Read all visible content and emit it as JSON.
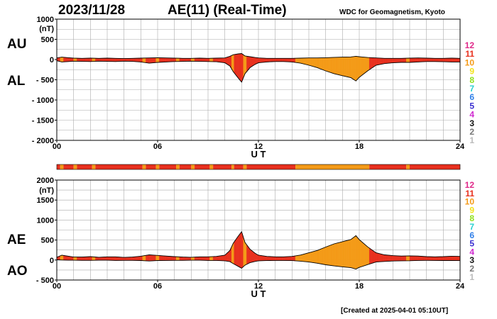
{
  "header": {
    "date": "2023/11/28",
    "title": "AE(11) (Real-Time)",
    "credit": "WDC for Geomagnetism, Kyoto"
  },
  "footer": {
    "created": "[Created at 2025-04-01 05:10UT]"
  },
  "colors": {
    "quiet": "#e8301e",
    "active": "#f49a17",
    "line": "#000000",
    "grid": "#aaaaaa"
  },
  "level_scale": [
    {
      "label": "12",
      "color": "#e02a8a"
    },
    {
      "label": "11",
      "color": "#e8301e"
    },
    {
      "label": "10",
      "color": "#f49a17"
    },
    {
      "label": "9",
      "color": "#f2e21b"
    },
    {
      "label": "8",
      "color": "#8fe01c"
    },
    {
      "label": "7",
      "color": "#2ad0d0"
    },
    {
      "label": "6",
      "color": "#2f7fe8"
    },
    {
      "label": "5",
      "color": "#3a2fd0"
    },
    {
      "label": "4",
      "color": "#d02ad0"
    },
    {
      "label": "3",
      "color": "#111111"
    },
    {
      "label": "2",
      "color": "#777777"
    },
    {
      "label": "1",
      "color": "#bbbbbb"
    }
  ],
  "chart_data": [
    {
      "type": "area",
      "name": "AU/AL",
      "upper_label": "AU",
      "lower_label": "AL",
      "unit": "(nT)",
      "xlabel": "U T",
      "xlim": [
        0,
        24
      ],
      "x_ticks": [
        "00",
        "06",
        "12",
        "18",
        "24"
      ],
      "ylim": [
        -2000,
        1000
      ],
      "y_ticks": [
        "1000",
        "500",
        "0",
        "- 500",
        "- 1000",
        "- 1500",
        "- 2000"
      ],
      "grid": true,
      "x": [
        0,
        0.3,
        0.7,
        1,
        1.5,
        2,
        2.5,
        3,
        3.5,
        4,
        4.5,
        5,
        5.5,
        6,
        6.5,
        7,
        7.5,
        8,
        8.5,
        9,
        9.5,
        10,
        10.3,
        10.5,
        10.8,
        11,
        11.2,
        11.5,
        11.8,
        12,
        12.5,
        13,
        13.5,
        14,
        14.5,
        15,
        15.5,
        16,
        16.5,
        17,
        17.5,
        17.8,
        18,
        18.5,
        19,
        19.5,
        20,
        20.5,
        21,
        21.5,
        22,
        22.5,
        23,
        23.5,
        24
      ],
      "AU": [
        40,
        60,
        45,
        35,
        30,
        35,
        30,
        35,
        30,
        25,
        30,
        35,
        40,
        45,
        40,
        35,
        30,
        30,
        35,
        30,
        35,
        40,
        80,
        120,
        140,
        150,
        90,
        70,
        50,
        40,
        30,
        30,
        30,
        30,
        35,
        40,
        40,
        45,
        55,
        60,
        65,
        80,
        70,
        50,
        40,
        30,
        30,
        30,
        35,
        40,
        35,
        30,
        30,
        35,
        30
      ],
      "AL": [
        -30,
        -60,
        -50,
        -40,
        -45,
        -50,
        -40,
        -45,
        -50,
        -40,
        -45,
        -60,
        -90,
        -70,
        -60,
        -50,
        -45,
        -40,
        -45,
        -50,
        -55,
        -80,
        -160,
        -300,
        -460,
        -560,
        -350,
        -200,
        -120,
        -80,
        -60,
        -50,
        -50,
        -60,
        -90,
        -140,
        -200,
        -280,
        -350,
        -400,
        -450,
        -530,
        -440,
        -280,
        -140,
        -100,
        -80,
        -70,
        -70,
        -60,
        -50,
        -50,
        -55,
        -60,
        -60
      ]
    },
    {
      "type": "area",
      "name": "AE/AO",
      "upper_label": "AE",
      "lower_label": "AO",
      "unit": "(nT)",
      "xlabel": "U T",
      "xlim": [
        0,
        24
      ],
      "x_ticks": [
        "00",
        "06",
        "12",
        "18",
        "24"
      ],
      "ylim": [
        -500,
        2000
      ],
      "y_ticks": [
        "2000",
        "1500",
        "1000",
        "500",
        "0",
        "- 500"
      ],
      "grid": true,
      "x": [
        0,
        0.3,
        0.7,
        1,
        1.5,
        2,
        2.5,
        3,
        3.5,
        4,
        4.5,
        5,
        5.5,
        6,
        6.5,
        7,
        7.5,
        8,
        8.5,
        9,
        9.5,
        10,
        10.3,
        10.5,
        10.8,
        11,
        11.2,
        11.5,
        11.8,
        12,
        12.5,
        13,
        13.5,
        14,
        14.5,
        15,
        15.5,
        16,
        16.5,
        17,
        17.5,
        17.8,
        18,
        18.5,
        19,
        19.5,
        20,
        20.5,
        21,
        21.5,
        22,
        22.5,
        23,
        23.5,
        24
      ],
      "AE": [
        70,
        120,
        95,
        75,
        75,
        85,
        70,
        80,
        80,
        65,
        75,
        95,
        130,
        115,
        100,
        85,
        75,
        70,
        80,
        80,
        90,
        120,
        240,
        420,
        600,
        710,
        440,
        270,
        170,
        120,
        90,
        80,
        80,
        90,
        125,
        180,
        240,
        325,
        405,
        460,
        515,
        610,
        510,
        330,
        180,
        130,
        110,
        100,
        105,
        100,
        85,
        80,
        85,
        95,
        90
      ],
      "AO": [
        5,
        0,
        -5,
        -5,
        -8,
        -8,
        -5,
        -5,
        -10,
        -8,
        -8,
        -12,
        -25,
        -12,
        -10,
        -8,
        -8,
        -5,
        -5,
        -10,
        -10,
        -20,
        -40,
        -90,
        -160,
        -205,
        -130,
        -65,
        -35,
        -20,
        -15,
        -10,
        -10,
        -15,
        -28,
        -50,
        -80,
        -118,
        -148,
        -170,
        -192,
        -225,
        -185,
        -115,
        -50,
        -35,
        -25,
        -20,
        -18,
        -10,
        -8,
        -10,
        -12,
        -12,
        -15
      ]
    }
  ],
  "activity_bar": {
    "xlim": [
      0,
      24
    ],
    "segments": [
      {
        "start": 0,
        "end": 0.2,
        "level": 11
      },
      {
        "start": 0.2,
        "end": 0.4,
        "level": 10
      },
      {
        "start": 0.4,
        "end": 1.0,
        "level": 11
      },
      {
        "start": 1.0,
        "end": 1.2,
        "level": 10
      },
      {
        "start": 1.2,
        "end": 2.1,
        "level": 11
      },
      {
        "start": 2.1,
        "end": 2.3,
        "level": 10
      },
      {
        "start": 2.3,
        "end": 5.1,
        "level": 11
      },
      {
        "start": 5.1,
        "end": 5.3,
        "level": 10
      },
      {
        "start": 5.3,
        "end": 5.9,
        "level": 11
      },
      {
        "start": 5.9,
        "end": 6.1,
        "level": 10
      },
      {
        "start": 6.1,
        "end": 7.1,
        "level": 11
      },
      {
        "start": 7.1,
        "end": 7.3,
        "level": 10
      },
      {
        "start": 7.3,
        "end": 8.0,
        "level": 11
      },
      {
        "start": 8.0,
        "end": 8.2,
        "level": 10
      },
      {
        "start": 8.2,
        "end": 9.1,
        "level": 11
      },
      {
        "start": 9.1,
        "end": 9.3,
        "level": 10
      },
      {
        "start": 9.3,
        "end": 10.4,
        "level": 11
      },
      {
        "start": 10.4,
        "end": 10.55,
        "level": 10
      },
      {
        "start": 10.55,
        "end": 11.1,
        "level": 11
      },
      {
        "start": 11.1,
        "end": 11.3,
        "level": 10
      },
      {
        "start": 11.3,
        "end": 14.2,
        "level": 11
      },
      {
        "start": 14.2,
        "end": 18.6,
        "level": 10
      },
      {
        "start": 18.6,
        "end": 20.8,
        "level": 11
      },
      {
        "start": 20.8,
        "end": 21.0,
        "level": 10
      },
      {
        "start": 21.0,
        "end": 24,
        "level": 11
      }
    ]
  }
}
